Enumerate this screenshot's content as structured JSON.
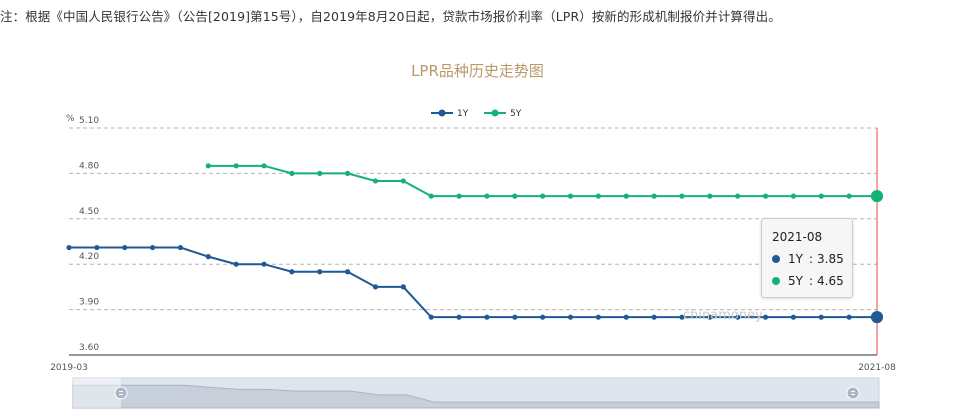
{
  "note": "注：根据《中国人民银行公告》（公告[2019]第15号），自2019年8月20日起，贷款市场报价利率（LPR）按新的形成机制报价并计算得出。",
  "watermark": "chinamoney",
  "colors": {
    "series_1y": "#1f5a96",
    "series_5y": "#14b17a",
    "cursor": "#e84c3d",
    "title": "#b8996a"
  },
  "tooltip": {
    "title": "2021-08",
    "rows": [
      {
        "label": "1Y",
        "value": "3.85"
      },
      {
        "label": "5Y",
        "value": "4.65"
      }
    ]
  },
  "chart_data": {
    "type": "line",
    "title": "LPR品种历史走势图",
    "ylabel": "%",
    "ylim": [
      3.6,
      5.1
    ],
    "yticks": [
      "5.10",
      "4.80",
      "4.50",
      "4.20",
      "3.90",
      "3.60"
    ],
    "x_start_label": "2019-03",
    "x_end_label": "2021-08",
    "x": [
      "2019-03",
      "2019-04",
      "2019-05",
      "2019-06",
      "2019-07",
      "2019-08",
      "2019-09",
      "2019-10",
      "2019-11",
      "2019-12",
      "2020-01",
      "2020-02",
      "2020-03",
      "2020-04",
      "2020-05",
      "2020-06",
      "2020-07",
      "2020-08",
      "2020-09",
      "2020-10",
      "2020-11",
      "2020-12",
      "2021-01",
      "2021-02",
      "2021-03",
      "2021-04",
      "2021-05",
      "2021-06",
      "2021-07",
      "2021-08"
    ],
    "series": [
      {
        "name": "1Y",
        "values": [
          4.31,
          4.31,
          4.31,
          4.31,
          4.31,
          4.25,
          4.2,
          4.2,
          4.15,
          4.15,
          4.15,
          4.05,
          4.05,
          3.85,
          3.85,
          3.85,
          3.85,
          3.85,
          3.85,
          3.85,
          3.85,
          3.85,
          3.85,
          3.85,
          3.85,
          3.85,
          3.85,
          3.85,
          3.85,
          3.85
        ]
      },
      {
        "name": "5Y",
        "values": [
          null,
          null,
          null,
          null,
          null,
          4.85,
          4.85,
          4.85,
          4.8,
          4.8,
          4.8,
          4.75,
          4.75,
          4.65,
          4.65,
          4.65,
          4.65,
          4.65,
          4.65,
          4.65,
          4.65,
          4.65,
          4.65,
          4.65,
          4.65,
          4.65,
          4.65,
          4.65,
          4.65,
          4.65
        ]
      }
    ],
    "legend_position": "top-center",
    "grid": true,
    "selected_index": 29
  }
}
